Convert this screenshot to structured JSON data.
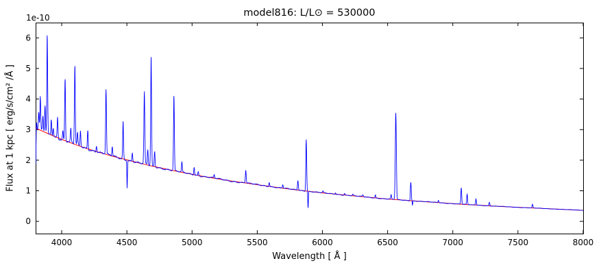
{
  "figure": {
    "title": "model816: L/L⊙ = 530000",
    "xlabel": "Wavelength [ Å ]",
    "ylabel": "Flux at 1 kpc [ erg/s/cm² /Å ]",
    "offset_text": "1e-10"
  },
  "chart_data": {
    "type": "line",
    "title": "model816: L/L⊙ = 530000",
    "xlabel": "Wavelength [ Å ]",
    "ylabel": "Flux at 1 kpc [ erg/s/cm² /Å ]",
    "y_scale_factor": "1e-10",
    "xlim": [
      3800,
      8000
    ],
    "ylim": [
      -0.4,
      6.5
    ],
    "x_ticks": [
      4000,
      4500,
      5000,
      5500,
      6000,
      6500,
      7000,
      7500,
      8000
    ],
    "y_ticks": [
      0,
      1,
      2,
      3,
      4,
      5,
      6
    ],
    "grid": false,
    "legend": false,
    "noise_amplitude": 0.018,
    "series": [
      {
        "name": "spectrum",
        "color": "#0000ff"
      },
      {
        "name": "continuum",
        "color": "#ff0000"
      }
    ],
    "continuum_points": [
      [
        3800,
        3.05
      ],
      [
        3900,
        2.86
      ],
      [
        4000,
        2.68
      ],
      [
        4100,
        2.52
      ],
      [
        4200,
        2.37
      ],
      [
        4300,
        2.24
      ],
      [
        4400,
        2.12
      ],
      [
        4500,
        2.01
      ],
      [
        4600,
        1.9
      ],
      [
        4700,
        1.8
      ],
      [
        4800,
        1.71
      ],
      [
        4900,
        1.62
      ],
      [
        5000,
        1.54
      ],
      [
        5100,
        1.46
      ],
      [
        5200,
        1.39
      ],
      [
        5300,
        1.32
      ],
      [
        5400,
        1.26
      ],
      [
        5500,
        1.2
      ],
      [
        5600,
        1.14
      ],
      [
        5700,
        1.08
      ],
      [
        5800,
        1.03
      ],
      [
        5900,
        0.98
      ],
      [
        6000,
        0.93
      ],
      [
        6100,
        0.89
      ],
      [
        6200,
        0.85
      ],
      [
        6300,
        0.81
      ],
      [
        6400,
        0.77
      ],
      [
        6500,
        0.73
      ],
      [
        6600,
        0.7
      ],
      [
        6700,
        0.67
      ],
      [
        6800,
        0.64
      ],
      [
        6900,
        0.61
      ],
      [
        7000,
        0.58
      ],
      [
        7100,
        0.55
      ],
      [
        7200,
        0.53
      ],
      [
        7300,
        0.5
      ],
      [
        7400,
        0.48
      ],
      [
        7500,
        0.46
      ],
      [
        7600,
        0.44
      ],
      [
        7700,
        0.42
      ],
      [
        7800,
        0.4
      ],
      [
        7900,
        0.38
      ],
      [
        8000,
        0.36
      ]
    ],
    "emission_lines": {
      "format": [
        "center_angstrom",
        "amplitude_flux_1e-10",
        "sigma_angstrom"
      ],
      "values": [
        [
          3805,
          0.45,
          3
        ],
        [
          3824,
          0.55,
          3
        ],
        [
          3836,
          1.05,
          3
        ],
        [
          3856,
          0.5,
          3
        ],
        [
          3872,
          0.9,
          3
        ],
        [
          3889,
          3.25,
          3
        ],
        [
          3920,
          0.55,
          3
        ],
        [
          3935,
          0.3,
          3
        ],
        [
          3968,
          0.7,
          3
        ],
        [
          4009,
          0.3,
          3
        ],
        [
          4026,
          2.05,
          3
        ],
        [
          4070,
          0.45,
          3
        ],
        [
          4101,
          2.6,
          3.2
        ],
        [
          4121,
          0.4,
          3
        ],
        [
          4144,
          0.5,
          3
        ],
        [
          4200,
          0.62,
          3
        ],
        [
          4267,
          0.2,
          3
        ],
        [
          4340,
          2.1,
          3.2
        ],
        [
          4388,
          0.3,
          3
        ],
        [
          4471,
          1.25,
          3
        ],
        [
          4542,
          0.28,
          3
        ],
        [
          4634,
          2.35,
          3.5
        ],
        [
          4660,
          0.5,
          3
        ],
        [
          4686,
          3.6,
          3.2
        ],
        [
          4713,
          0.5,
          3
        ],
        [
          4861,
          2.45,
          3.2
        ],
        [
          4922,
          0.32,
          3
        ],
        [
          5016,
          0.25,
          3
        ],
        [
          5048,
          0.12,
          3
        ],
        [
          5170,
          0.1,
          3
        ],
        [
          5412,
          0.42,
          3.2
        ],
        [
          5592,
          0.14,
          3
        ],
        [
          5696,
          0.12,
          3
        ],
        [
          5812,
          0.32,
          3.2
        ],
        [
          5876,
          1.7,
          3.2
        ],
        [
          6004,
          0.06,
          3
        ],
        [
          6100,
          0.05,
          3
        ],
        [
          6170,
          0.06,
          3
        ],
        [
          6234,
          0.05,
          3
        ],
        [
          6310,
          0.06,
          3
        ],
        [
          6406,
          0.1,
          3
        ],
        [
          6527,
          0.14,
          3
        ],
        [
          6563,
          2.83,
          4
        ],
        [
          6678,
          0.62,
          3.2
        ],
        [
          6890,
          0.08,
          3
        ],
        [
          7065,
          0.54,
          3.2
        ],
        [
          7110,
          0.34,
          3
        ],
        [
          7178,
          0.2,
          3
        ],
        [
          7281,
          0.12,
          3
        ],
        [
          7612,
          0.12,
          3
        ]
      ]
    },
    "absorption_dips": {
      "format": [
        "center_angstrom",
        "depth_flux_1e-10",
        "sigma_angstrom"
      ],
      "values": [
        [
          3800,
          1.3,
          3.5
        ],
        [
          4502,
          0.88,
          2.2
        ],
        [
          5890,
          0.56,
          2.2
        ],
        [
          6691,
          0.14,
          2.0
        ]
      ]
    }
  }
}
